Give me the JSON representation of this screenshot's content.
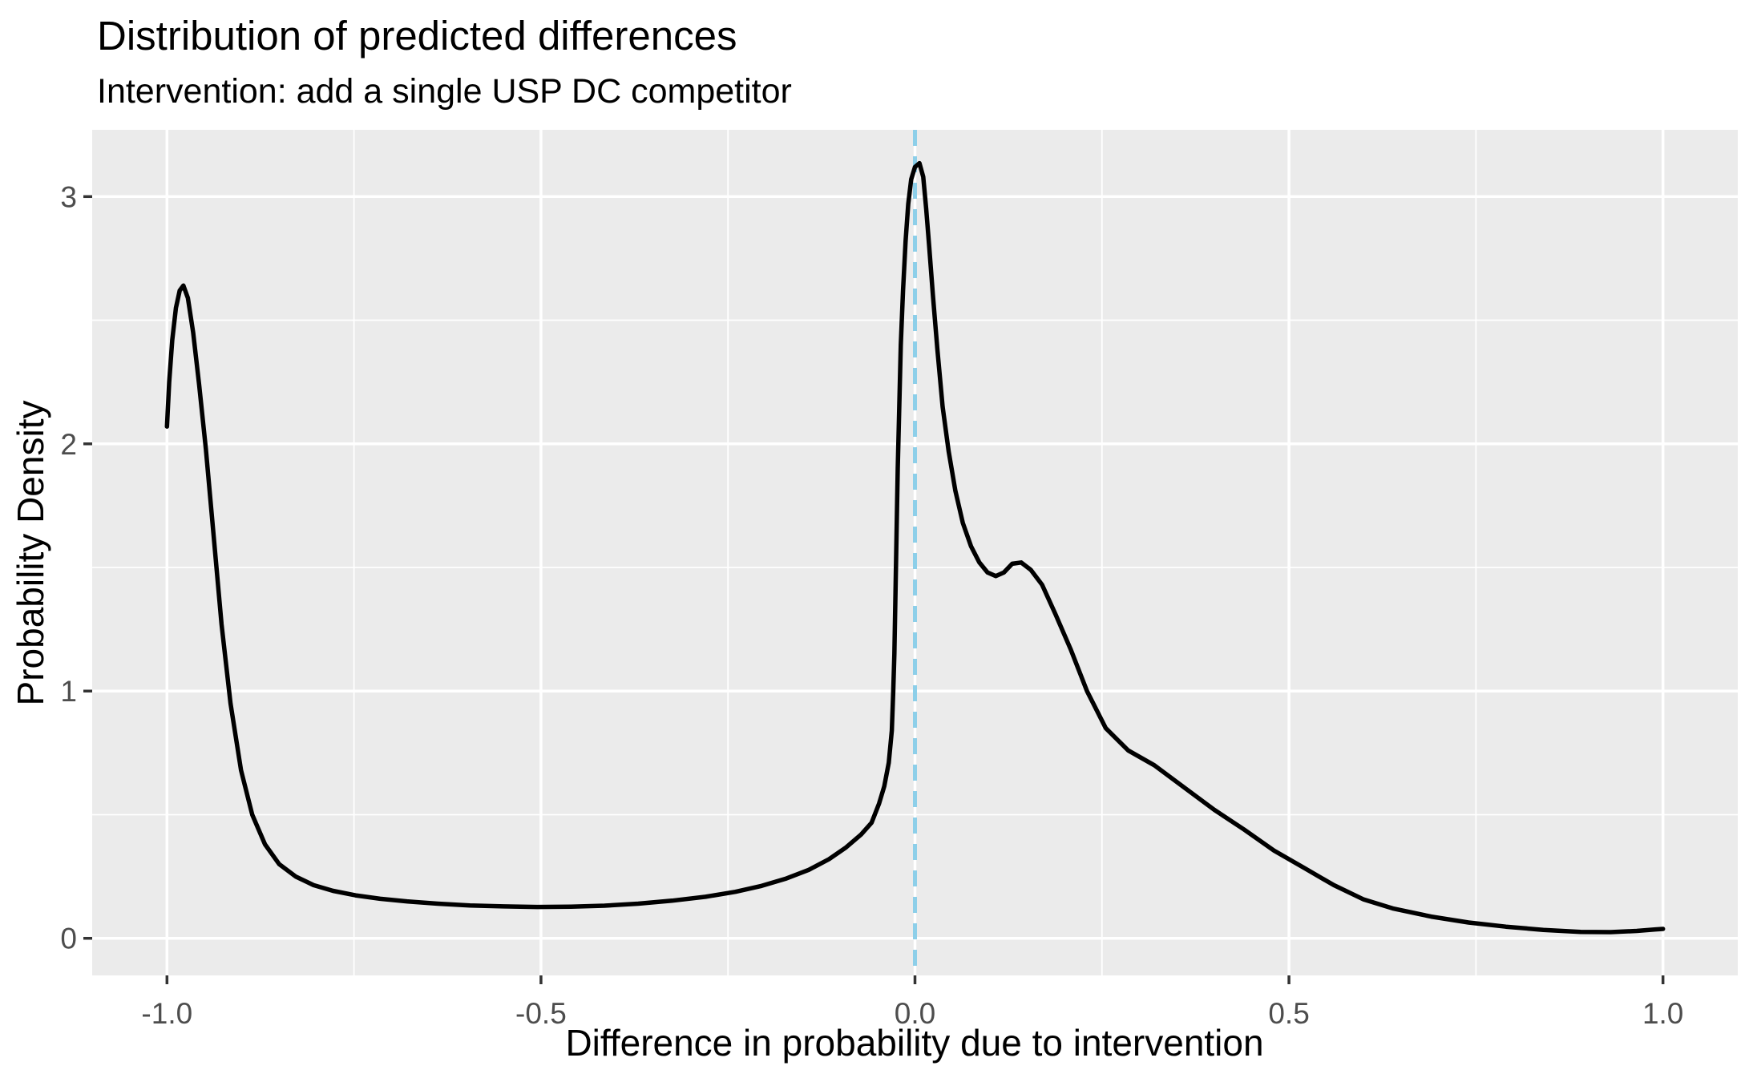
{
  "chart_data": {
    "type": "line",
    "subtype": "density",
    "title": "Distribution of predicted differences",
    "subtitle": "Intervention: add a single USP DC competitor",
    "xlabel": "Difference in probability due to intervention",
    "ylabel": "Probability Density",
    "xlim": [
      -1.1,
      1.1
    ],
    "ylim": [
      -0.15,
      3.27
    ],
    "grid": "on",
    "legend": "none",
    "x_ticks": {
      "values": [
        -1.0,
        -0.5,
        0.0,
        0.5,
        1.0
      ],
      "labels": [
        "-1.0",
        "-0.5",
        "0.0",
        "0.5",
        "1.0"
      ]
    },
    "y_ticks": {
      "values": [
        0,
        1,
        2,
        3
      ],
      "labels": [
        "0",
        "1",
        "2",
        "3"
      ]
    },
    "x_minor": [
      -0.75,
      -0.25,
      0.25,
      0.75
    ],
    "y_minor": [
      0.5,
      1.5,
      2.5
    ],
    "reference_line": {
      "x": 0.0,
      "linetype": "dashed",
      "color": "#8dcfe9"
    },
    "series": [
      {
        "name": "predicted-difference-density",
        "color": "#000000",
        "points": [
          [
            -1.0,
            2.07
          ],
          [
            -0.997,
            2.25
          ],
          [
            -0.993,
            2.42
          ],
          [
            -0.988,
            2.55
          ],
          [
            -0.983,
            2.62
          ],
          [
            -0.978,
            2.64
          ],
          [
            -0.972,
            2.59
          ],
          [
            -0.965,
            2.45
          ],
          [
            -0.957,
            2.24
          ],
          [
            -0.948,
            1.98
          ],
          [
            -0.938,
            1.64
          ],
          [
            -0.927,
            1.27
          ],
          [
            -0.915,
            0.95
          ],
          [
            -0.901,
            0.68
          ],
          [
            -0.886,
            0.5
          ],
          [
            -0.869,
            0.38
          ],
          [
            -0.85,
            0.3
          ],
          [
            -0.828,
            0.25
          ],
          [
            -0.804,
            0.215
          ],
          [
            -0.778,
            0.192
          ],
          [
            -0.748,
            0.174
          ],
          [
            -0.715,
            0.16
          ],
          [
            -0.678,
            0.149
          ],
          [
            -0.638,
            0.14
          ],
          [
            -0.595,
            0.133
          ],
          [
            -0.55,
            0.129
          ],
          [
            -0.505,
            0.127
          ],
          [
            -0.46,
            0.128
          ],
          [
            -0.415,
            0.132
          ],
          [
            -0.37,
            0.14
          ],
          [
            -0.325,
            0.152
          ],
          [
            -0.28,
            0.168
          ],
          [
            -0.24,
            0.188
          ],
          [
            -0.205,
            0.212
          ],
          [
            -0.172,
            0.242
          ],
          [
            -0.142,
            0.277
          ],
          [
            -0.115,
            0.32
          ],
          [
            -0.092,
            0.368
          ],
          [
            -0.072,
            0.42
          ],
          [
            -0.058,
            0.468
          ],
          [
            -0.048,
            0.545
          ],
          [
            -0.041,
            0.615
          ],
          [
            -0.035,
            0.71
          ],
          [
            -0.031,
            0.84
          ],
          [
            -0.029,
            1.0
          ],
          [
            -0.0275,
            1.15
          ],
          [
            -0.026,
            1.4
          ],
          [
            -0.0245,
            1.65
          ],
          [
            -0.023,
            1.9
          ],
          [
            -0.021,
            2.15
          ],
          [
            -0.019,
            2.4
          ],
          [
            -0.016,
            2.62
          ],
          [
            -0.0125,
            2.82
          ],
          [
            -0.009,
            2.97
          ],
          [
            -0.005,
            3.07
          ],
          [
            0.0,
            3.12
          ],
          [
            0.006,
            3.135
          ],
          [
            0.011,
            3.08
          ],
          [
            0.015,
            2.95
          ],
          [
            0.019,
            2.8
          ],
          [
            0.024,
            2.6
          ],
          [
            0.03,
            2.38
          ],
          [
            0.037,
            2.15
          ],
          [
            0.045,
            1.97
          ],
          [
            0.054,
            1.81
          ],
          [
            0.064,
            1.68
          ],
          [
            0.075,
            1.585
          ],
          [
            0.086,
            1.52
          ],
          [
            0.097,
            1.48
          ],
          [
            0.108,
            1.465
          ],
          [
            0.119,
            1.48
          ],
          [
            0.13,
            1.515
          ],
          [
            0.142,
            1.52
          ],
          [
            0.155,
            1.49
          ],
          [
            0.17,
            1.43
          ],
          [
            0.188,
            1.31
          ],
          [
            0.208,
            1.17
          ],
          [
            0.23,
            1.0
          ],
          [
            0.255,
            0.85
          ],
          [
            0.285,
            0.76
          ],
          [
            0.32,
            0.7
          ],
          [
            0.36,
            0.61
          ],
          [
            0.4,
            0.52
          ],
          [
            0.44,
            0.44
          ],
          [
            0.48,
            0.355
          ],
          [
            0.52,
            0.285
          ],
          [
            0.56,
            0.215
          ],
          [
            0.6,
            0.157
          ],
          [
            0.64,
            0.12
          ],
          [
            0.69,
            0.088
          ],
          [
            0.74,
            0.064
          ],
          [
            0.79,
            0.047
          ],
          [
            0.84,
            0.034
          ],
          [
            0.89,
            0.026
          ],
          [
            0.93,
            0.025
          ],
          [
            0.965,
            0.03
          ],
          [
            0.99,
            0.036
          ],
          [
            1.0,
            0.038
          ]
        ]
      }
    ],
    "style": {
      "panel_bg": "#ebebeb",
      "plot_bg": "#ffffff",
      "grid_color": "#ffffff",
      "tick_mark_color": "#333333",
      "tick_label_color": "#4d4d4d",
      "curve_color": "#000000",
      "vline_color": "#8dcfe9"
    }
  }
}
